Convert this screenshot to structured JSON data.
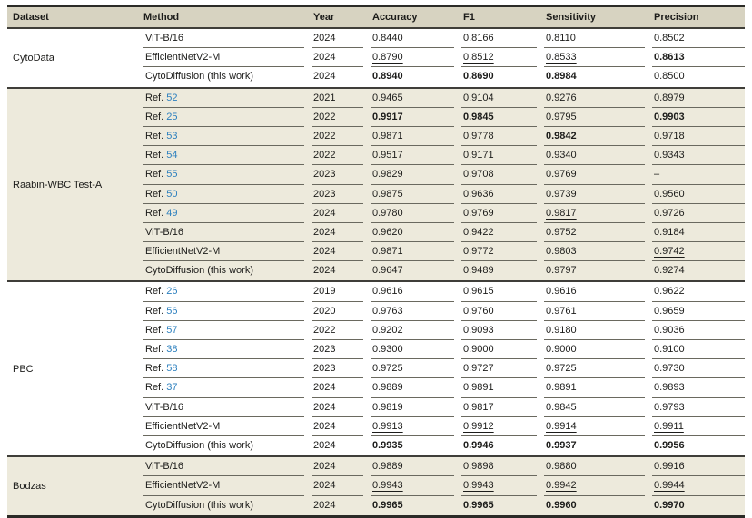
{
  "table": {
    "columns": [
      "Dataset",
      "Method",
      "Year",
      "Accuracy",
      "F1",
      "Sensitivity",
      "Precision"
    ],
    "metric_names": [
      "accuracy",
      "f1",
      "sensitivity",
      "precision"
    ],
    "colors": {
      "header_bg": "#d7d3c1",
      "shade_bg": "#edeadc",
      "link": "#2b7fbe",
      "border_heavy": "#2b2b27",
      "border_group": "#3f3e39",
      "border_row": "#6a695f",
      "text": "#1c1c1a"
    },
    "groups": [
      {
        "dataset": "CytoData",
        "shaded": false,
        "rows": [
          {
            "method": "ViT-B/16",
            "year": "2024",
            "cells": [
              {
                "v": "0.8440"
              },
              {
                "v": "0.8166"
              },
              {
                "v": "0.8110"
              },
              {
                "v": "0.8502",
                "style": "underline"
              }
            ]
          },
          {
            "method": "EfficientNetV2-M",
            "year": "2024",
            "cells": [
              {
                "v": "0.8790",
                "style": "underline"
              },
              {
                "v": "0.8512",
                "style": "underline"
              },
              {
                "v": "0.8533",
                "style": "underline"
              },
              {
                "v": "0.8613",
                "style": "bold"
              }
            ]
          },
          {
            "method": "CytoDiffusion (this work)",
            "year": "2024",
            "cells": [
              {
                "v": "0.8940",
                "style": "bold"
              },
              {
                "v": "0.8690",
                "style": "bold"
              },
              {
                "v": "0.8984",
                "style": "bold"
              },
              {
                "v": "0.8500"
              }
            ]
          }
        ]
      },
      {
        "dataset": "Raabin-WBC Test-A",
        "shaded": true,
        "rows": [
          {
            "method": "Ref.",
            "ref": "52",
            "year": "2021",
            "cells": [
              {
                "v": "0.9465"
              },
              {
                "v": "0.9104"
              },
              {
                "v": "0.9276"
              },
              {
                "v": "0.8979"
              }
            ]
          },
          {
            "method": "Ref.",
            "ref": "25",
            "year": "2022",
            "cells": [
              {
                "v": "0.9917",
                "style": "bold"
              },
              {
                "v": "0.9845",
                "style": "bold"
              },
              {
                "v": "0.9795"
              },
              {
                "v": "0.9903",
                "style": "bold"
              }
            ]
          },
          {
            "method": "Ref.",
            "ref": "53",
            "year": "2022",
            "cells": [
              {
                "v": "0.9871"
              },
              {
                "v": "0.9778",
                "style": "underline"
              },
              {
                "v": "0.9842",
                "style": "bold"
              },
              {
                "v": "0.9718"
              }
            ]
          },
          {
            "method": "Ref.",
            "ref": "54",
            "year": "2022",
            "cells": [
              {
                "v": "0.9517"
              },
              {
                "v": "0.9171"
              },
              {
                "v": "0.9340"
              },
              {
                "v": "0.9343"
              }
            ]
          },
          {
            "method": "Ref.",
            "ref": "55",
            "year": "2023",
            "cells": [
              {
                "v": "0.9829"
              },
              {
                "v": "0.9708"
              },
              {
                "v": "0.9769"
              },
              {
                "v": "–"
              }
            ]
          },
          {
            "method": "Ref.",
            "ref": "50",
            "year": "2023",
            "cells": [
              {
                "v": "0.9875",
                "style": "underline"
              },
              {
                "v": "0.9636"
              },
              {
                "v": "0.9739"
              },
              {
                "v": "0.9560"
              }
            ]
          },
          {
            "method": "Ref.",
            "ref": "49",
            "year": "2024",
            "cells": [
              {
                "v": "0.9780"
              },
              {
                "v": "0.9769"
              },
              {
                "v": "0.9817",
                "style": "underline"
              },
              {
                "v": "0.9726"
              }
            ]
          },
          {
            "method": "ViT-B/16",
            "year": "2024",
            "cells": [
              {
                "v": "0.9620"
              },
              {
                "v": "0.9422"
              },
              {
                "v": "0.9752"
              },
              {
                "v": "0.9184"
              }
            ]
          },
          {
            "method": "EfficientNetV2-M",
            "year": "2024",
            "cells": [
              {
                "v": "0.9871"
              },
              {
                "v": "0.9772"
              },
              {
                "v": "0.9803"
              },
              {
                "v": "0.9742",
                "style": "underline"
              }
            ]
          },
          {
            "method": "CytoDiffusion (this work)",
            "year": "2024",
            "cells": [
              {
                "v": "0.9647"
              },
              {
                "v": "0.9489"
              },
              {
                "v": "0.9797"
              },
              {
                "v": "0.9274"
              }
            ]
          }
        ]
      },
      {
        "dataset": "PBC",
        "shaded": false,
        "rows": [
          {
            "method": "Ref.",
            "ref": "26",
            "year": "2019",
            "cells": [
              {
                "v": "0.9616"
              },
              {
                "v": "0.9615"
              },
              {
                "v": "0.9616"
              },
              {
                "v": "0.9622"
              }
            ]
          },
          {
            "method": "Ref.",
            "ref": "56",
            "year": "2020",
            "cells": [
              {
                "v": "0.9763"
              },
              {
                "v": "0.9760"
              },
              {
                "v": "0.9761"
              },
              {
                "v": "0.9659"
              }
            ]
          },
          {
            "method": "Ref.",
            "ref": "57",
            "year": "2022",
            "cells": [
              {
                "v": "0.9202"
              },
              {
                "v": "0.9093"
              },
              {
                "v": "0.9180"
              },
              {
                "v": "0.9036"
              }
            ]
          },
          {
            "method": "Ref.",
            "ref": "38",
            "year": "2023",
            "cells": [
              {
                "v": "0.9300"
              },
              {
                "v": "0.9000"
              },
              {
                "v": "0.9000"
              },
              {
                "v": "0.9100"
              }
            ]
          },
          {
            "method": "Ref.",
            "ref": "58",
            "year": "2023",
            "cells": [
              {
                "v": "0.9725"
              },
              {
                "v": "0.9727"
              },
              {
                "v": "0.9725"
              },
              {
                "v": "0.9730"
              }
            ]
          },
          {
            "method": "Ref.",
            "ref": "37",
            "year": "2024",
            "cells": [
              {
                "v": "0.9889"
              },
              {
                "v": "0.9891"
              },
              {
                "v": "0.9891"
              },
              {
                "v": "0.9893"
              }
            ]
          },
          {
            "method": "ViT-B/16",
            "year": "2024",
            "cells": [
              {
                "v": "0.9819"
              },
              {
                "v": "0.9817"
              },
              {
                "v": "0.9845"
              },
              {
                "v": "0.9793"
              }
            ]
          },
          {
            "method": "EfficientNetV2-M",
            "year": "2024",
            "cells": [
              {
                "v": "0.9913",
                "style": "underline"
              },
              {
                "v": "0.9912",
                "style": "underline"
              },
              {
                "v": "0.9914",
                "style": "underline"
              },
              {
                "v": "0.9911",
                "style": "underline"
              }
            ]
          },
          {
            "method": "CytoDiffusion (this work)",
            "year": "2024",
            "cells": [
              {
                "v": "0.9935",
                "style": "bold"
              },
              {
                "v": "0.9946",
                "style": "bold"
              },
              {
                "v": "0.9937",
                "style": "bold"
              },
              {
                "v": "0.9956",
                "style": "bold"
              }
            ]
          }
        ]
      },
      {
        "dataset": "Bodzas",
        "shaded": true,
        "rows": [
          {
            "method": "ViT-B/16",
            "year": "2024",
            "cells": [
              {
                "v": "0.9889"
              },
              {
                "v": "0.9898"
              },
              {
                "v": "0.9880"
              },
              {
                "v": "0.9916"
              }
            ]
          },
          {
            "method": "EfficientNetV2-M",
            "year": "2024",
            "cells": [
              {
                "v": "0.9943",
                "style": "underline"
              },
              {
                "v": "0.9943",
                "style": "underline"
              },
              {
                "v": "0.9942",
                "style": "underline"
              },
              {
                "v": "0.9944",
                "style": "underline"
              }
            ]
          },
          {
            "method": "CytoDiffusion (this work)",
            "year": "2024",
            "cells": [
              {
                "v": "0.9965",
                "style": "bold"
              },
              {
                "v": "0.9965",
                "style": "bold"
              },
              {
                "v": "0.9960",
                "style": "bold"
              },
              {
                "v": "0.9970",
                "style": "bold"
              }
            ]
          }
        ]
      }
    ]
  }
}
